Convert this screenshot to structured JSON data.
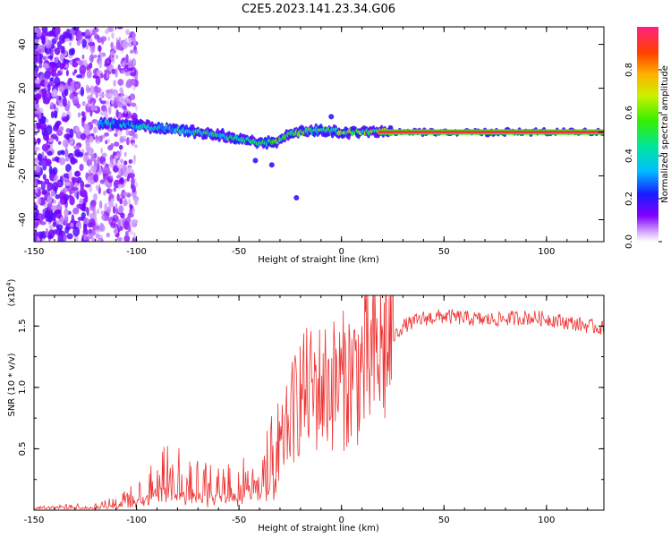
{
  "title": "C2E5.2023.141.23.34.G06",
  "chart_data": [
    {
      "type": "heatmap",
      "xlabel": "Height of straight line (km)",
      "ylabel": "Frequency (Hz)",
      "xlim": [
        -150,
        128
      ],
      "ylim": [
        -50,
        48
      ],
      "xticks": [
        -150,
        -100,
        -50,
        0,
        50,
        100
      ],
      "yticks": [
        -40,
        -20,
        0,
        20,
        40
      ],
      "colorbar": {
        "label": "Normalized spectral amplitude",
        "range": [
          0,
          1
        ],
        "ticks": [
          0.0,
          0.2,
          0.4,
          0.6,
          0.8
        ],
        "tick_labels": [
          "0.0",
          "0.2",
          "0.4",
          "0.6",
          "0.8"
        ]
      },
      "ridge": [
        {
          "x": -115,
          "y": 4
        },
        {
          "x": -100,
          "y": 3
        },
        {
          "x": -90,
          "y": 2
        },
        {
          "x": -80,
          "y": 1
        },
        {
          "x": -70,
          "y": 0
        },
        {
          "x": -60,
          "y": -1
        },
        {
          "x": -52,
          "y": -3
        },
        {
          "x": -45,
          "y": -4
        },
        {
          "x": -38,
          "y": -5
        },
        {
          "x": -30,
          "y": -4
        },
        {
          "x": -26,
          "y": -1
        },
        {
          "x": -20,
          "y": 0
        },
        {
          "x": -10,
          "y": 1
        },
        {
          "x": 0,
          "y": 0
        },
        {
          "x": 10,
          "y": 0
        },
        {
          "x": 20,
          "y": 0
        },
        {
          "x": 128,
          "y": 0
        }
      ]
    },
    {
      "type": "line",
      "xlabel": "Height of straight line (km)",
      "ylabel": "SNR (10 * v/v)",
      "scale_label": "(x10",
      "scale_exp": "4",
      "scale_close": ")",
      "xlim": [
        -150,
        128
      ],
      "ylim": [
        0,
        17500
      ],
      "xticks": [
        -150,
        -100,
        -50,
        0,
        50,
        100
      ],
      "yticks": [
        5000,
        10000,
        15000
      ],
      "ytick_labels": [
        "0.5",
        "1.0",
        "1.5"
      ],
      "color": "#ee3333",
      "envelope": [
        {
          "x": -150,
          "y": 200
        },
        {
          "x": -120,
          "y": 300
        },
        {
          "x": -110,
          "y": 700
        },
        {
          "x": -100,
          "y": 1200
        },
        {
          "x": -90,
          "y": 2500
        },
        {
          "x": -80,
          "y": 3200
        },
        {
          "x": -70,
          "y": 2200
        },
        {
          "x": -60,
          "y": 2000
        },
        {
          "x": -50,
          "y": 2300
        },
        {
          "x": -40,
          "y": 2800
        },
        {
          "x": -30,
          "y": 5000
        },
        {
          "x": -25,
          "y": 7500
        },
        {
          "x": -20,
          "y": 9500
        },
        {
          "x": -10,
          "y": 10000
        },
        {
          "x": 0,
          "y": 10500
        },
        {
          "x": 10,
          "y": 11500
        },
        {
          "x": 20,
          "y": 13000
        },
        {
          "x": 30,
          "y": 15000
        },
        {
          "x": 40,
          "y": 15600
        },
        {
          "x": 50,
          "y": 15800
        },
        {
          "x": 70,
          "y": 15500
        },
        {
          "x": 90,
          "y": 15700
        },
        {
          "x": 100,
          "y": 15600
        },
        {
          "x": 110,
          "y": 15300
        },
        {
          "x": 128,
          "y": 14800
        }
      ]
    }
  ]
}
